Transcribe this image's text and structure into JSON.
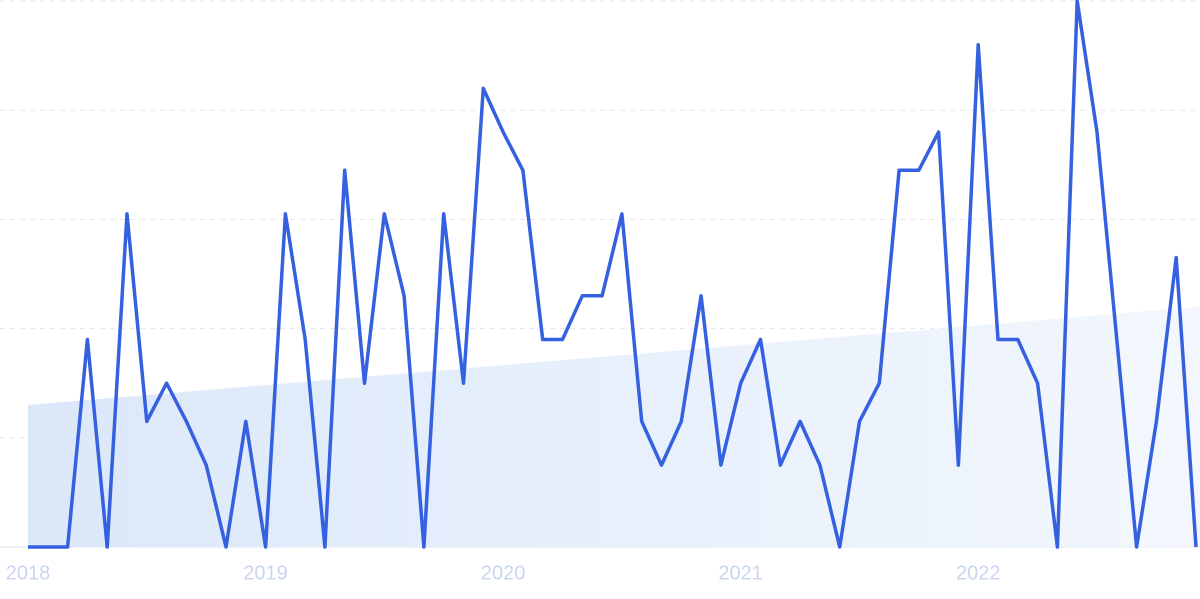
{
  "chart_data": {
    "type": "line",
    "categories": [
      "2018",
      null,
      null,
      null,
      null,
      null,
      null,
      null,
      null,
      null,
      null,
      null,
      "2019",
      null,
      null,
      null,
      null,
      null,
      null,
      null,
      null,
      null,
      null,
      null,
      "2020",
      null,
      null,
      null,
      null,
      null,
      null,
      null,
      null,
      null,
      null,
      null,
      "2021",
      null,
      null,
      null,
      null,
      null,
      null,
      null,
      null,
      null,
      null,
      null,
      "2022",
      null,
      null,
      null,
      null,
      null,
      null,
      null,
      null,
      null,
      null,
      null
    ],
    "series": [
      {
        "color": "#3560e0",
        "values": [
          0,
          0,
          0,
          38,
          0,
          61,
          23,
          30,
          23,
          15,
          0,
          23,
          0,
          61,
          38,
          0,
          69,
          30,
          61,
          46,
          0,
          61,
          30,
          84,
          76,
          69,
          38,
          38,
          46,
          46,
          61,
          23,
          15,
          23,
          46,
          15,
          30,
          38,
          15,
          23,
          15,
          0,
          23,
          30,
          69,
          69,
          76,
          15,
          92,
          38,
          38,
          30,
          0,
          100,
          76,
          38,
          0,
          23,
          53,
          0
        ]
      }
    ],
    "trend": {
      "color": "#dce9fb",
      "values": [
        26,
        44
      ]
    },
    "ylim": [
      0,
      100
    ],
    "yticks": [
      0,
      20,
      40,
      60,
      80,
      100
    ],
    "grid": true
  }
}
